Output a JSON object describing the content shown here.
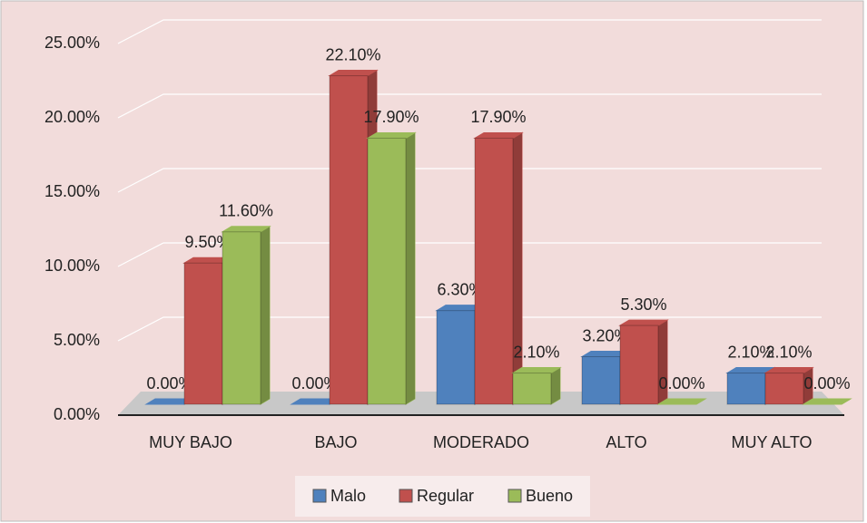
{
  "chart_data": {
    "type": "bar3d",
    "categories": [
      "MUY BAJO",
      "BAJO",
      "MODERADO",
      "ALTO",
      "MUY ALTO"
    ],
    "series": [
      {
        "name": "Malo",
        "color": "#4f81bd",
        "values": [
          0,
          0,
          6.3,
          3.2,
          2.1
        ],
        "value_labels": [
          "0.00%",
          "0.00%",
          "6.30%",
          "3.20%",
          "2.10%"
        ]
      },
      {
        "name": "Regular",
        "color": "#c0504d",
        "values": [
          9.5,
          22.1,
          17.9,
          5.3,
          2.1
        ],
        "value_labels": [
          "9.50%",
          "22.10%",
          "17.90%",
          "5.30%",
          "2.10%"
        ]
      },
      {
        "name": "Bueno",
        "color": "#9bbb59",
        "values": [
          11.6,
          17.9,
          2.1,
          0,
          0
        ],
        "value_labels": [
          "11.60%",
          "17.90%",
          "2.10%",
          "0.00%",
          "0.00%"
        ]
      }
    ],
    "ylim": [
      0,
      25
    ],
    "yticks": [
      {
        "value": 0,
        "label": "0.00%"
      },
      {
        "value": 5,
        "label": "5.00%"
      },
      {
        "value": 10,
        "label": "10.00%"
      },
      {
        "value": 15,
        "label": "15.00%"
      },
      {
        "value": 20,
        "label": "20.00%"
      },
      {
        "value": 25,
        "label": "25.00%"
      }
    ],
    "grid": true,
    "legend": "bottom"
  }
}
